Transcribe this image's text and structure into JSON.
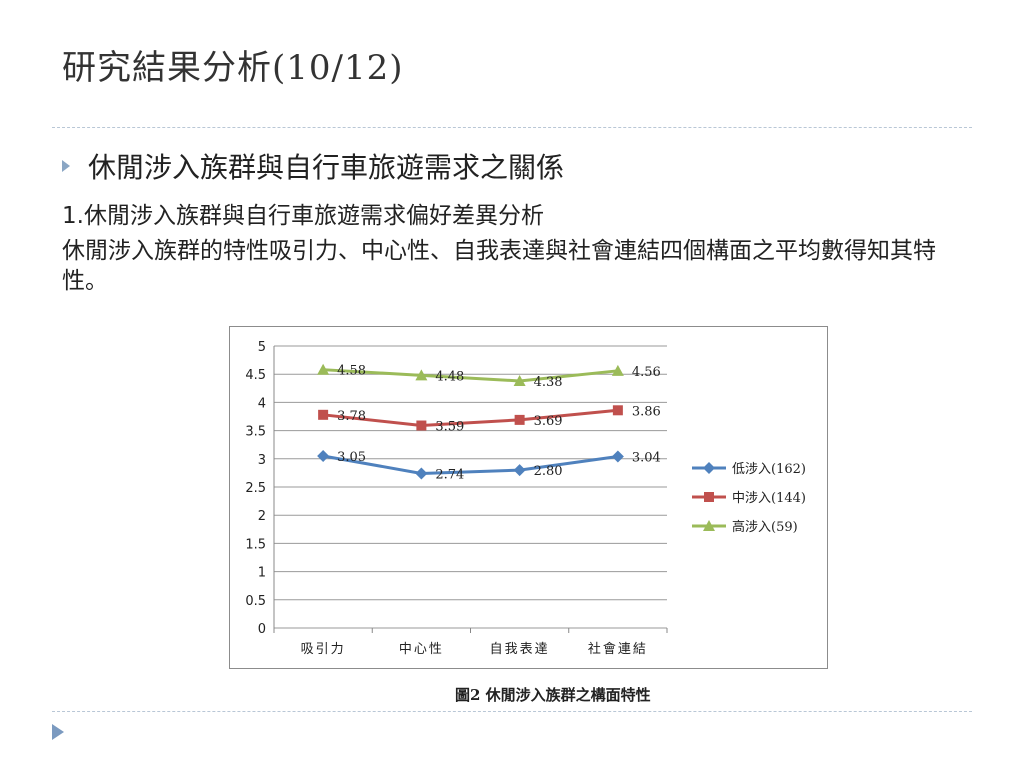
{
  "slide": {
    "title": "研究結果分析(10/12)",
    "bullet": "休閒涉入族群與自行車旅遊需求之關係",
    "line1": "1.休閒涉入族群與自行車旅遊需求偏好差異分析",
    "paragraph": "休閒涉入族群的特性吸引力、中心性、自我表達與社會連結四個構面之平均數得知其特性。",
    "caption": "圖2 休閒涉入族群之構面特性"
  },
  "chart_data": {
    "type": "line",
    "categories": [
      "吸引力",
      "中心性",
      "自我表達",
      "社會連結"
    ],
    "ylim": [
      0,
      5
    ],
    "yticks": [
      "0",
      "0.5",
      "1",
      "1.5",
      "2",
      "2.5",
      "3",
      "3.5",
      "4",
      "4.5",
      "5"
    ],
    "grid": true,
    "legend": "right",
    "series": [
      {
        "name": "低涉入(162)",
        "values": [
          3.05,
          2.74,
          2.8,
          3.04
        ],
        "labels": [
          "3.05",
          "2.74",
          "2.80",
          "3.04"
        ],
        "color": "#4f81bd",
        "marker": "diamond"
      },
      {
        "name": "中涉入(144)",
        "values": [
          3.78,
          3.59,
          3.69,
          3.86
        ],
        "labels": [
          "3.78",
          "3.59",
          "3.69",
          "3.86"
        ],
        "color": "#c0504d",
        "marker": "square"
      },
      {
        "name": "高涉入(59)",
        "values": [
          4.58,
          4.48,
          4.38,
          4.56
        ],
        "labels": [
          "4.58",
          "4.48",
          "4.38",
          "4.56"
        ],
        "color": "#9bbb59",
        "marker": "triangle"
      }
    ]
  }
}
